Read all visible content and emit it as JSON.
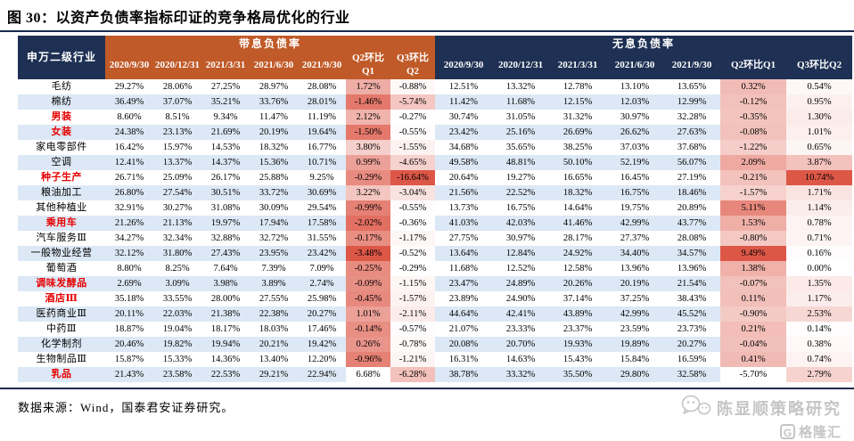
{
  "title": "图 30：以资产负债率指标印证的竞争格局优化的行业",
  "colors": {
    "header_navy": "#1E3053",
    "header_orange": "#C05A28",
    "row_stripe": "#DCE8F5",
    "highlight_name_red": "#E60000",
    "scale_base_red": "#DD5747",
    "rule_line": "#1A2B4D"
  },
  "table": {
    "first_column_header": "申万二级行业",
    "groups": [
      {
        "label": "带息负债率",
        "key": "interest_bearing",
        "scale_direction": "negative_darker",
        "columns": [
          "2020/9/30",
          "2020/12/31",
          "2021/3/31",
          "2021/6/30",
          "2021/9/30",
          "Q2环比Q1",
          "Q3环比Q2"
        ]
      },
      {
        "label": "无息负债率",
        "key": "interest_free",
        "scale_direction": "positive_darker",
        "columns": [
          "2020/9/30",
          "2020/12/31",
          "2021/3/31",
          "2021/6/30",
          "2021/9/30",
          "Q2环比Q1",
          "Q3环比Q2"
        ]
      }
    ],
    "rows": [
      {
        "name": "毛纺",
        "highlight": false,
        "interest_bearing": [
          "29.27%",
          "28.06%",
          "27.25%",
          "28.97%",
          "28.08%",
          "1.72%",
          "-0.88%"
        ],
        "interest_free": [
          "12.51%",
          "13.32%",
          "12.78%",
          "13.10%",
          "13.65%",
          "0.32%",
          "0.54%"
        ]
      },
      {
        "name": "棉纺",
        "highlight": false,
        "interest_bearing": [
          "36.49%",
          "37.07%",
          "35.21%",
          "33.76%",
          "28.01%",
          "-1.46%",
          "-5.74%"
        ],
        "interest_free": [
          "11.42%",
          "11.68%",
          "12.15%",
          "12.03%",
          "12.99%",
          "-0.12%",
          "0.95%"
        ]
      },
      {
        "name": "男装",
        "highlight": true,
        "interest_bearing": [
          "8.60%",
          "8.51%",
          "9.34%",
          "11.47%",
          "11.19%",
          "2.12%",
          "-0.27%"
        ],
        "interest_free": [
          "30.74%",
          "31.05%",
          "31.32%",
          "30.97%",
          "32.28%",
          "-0.35%",
          "1.30%"
        ]
      },
      {
        "name": "女装",
        "highlight": true,
        "interest_bearing": [
          "24.38%",
          "23.13%",
          "21.69%",
          "20.19%",
          "19.64%",
          "-1.50%",
          "-0.55%"
        ],
        "interest_free": [
          "23.42%",
          "25.16%",
          "26.69%",
          "26.62%",
          "27.63%",
          "-0.08%",
          "1.01%"
        ]
      },
      {
        "name": "家电零部件",
        "highlight": false,
        "interest_bearing": [
          "16.42%",
          "15.97%",
          "14.53%",
          "18.32%",
          "16.77%",
          "3.80%",
          "-1.55%"
        ],
        "interest_free": [
          "34.68%",
          "35.65%",
          "38.25%",
          "37.03%",
          "37.68%",
          "-1.22%",
          "0.65%"
        ]
      },
      {
        "name": "空调",
        "highlight": false,
        "interest_bearing": [
          "12.41%",
          "13.37%",
          "14.37%",
          "15.36%",
          "10.71%",
          "0.99%",
          "-4.65%"
        ],
        "interest_free": [
          "49.58%",
          "48.81%",
          "50.10%",
          "52.19%",
          "56.07%",
          "2.09%",
          "3.87%"
        ]
      },
      {
        "name": "种子生产",
        "highlight": true,
        "interest_bearing": [
          "26.71%",
          "25.09%",
          "26.17%",
          "25.88%",
          "9.25%",
          "-0.29%",
          "-16.64%"
        ],
        "interest_free": [
          "20.64%",
          "19.27%",
          "16.65%",
          "16.45%",
          "27.19%",
          "-0.21%",
          "10.74%"
        ]
      },
      {
        "name": "粮油加工",
        "highlight": false,
        "interest_bearing": [
          "26.80%",
          "27.54%",
          "30.51%",
          "33.72%",
          "30.69%",
          "3.22%",
          "-3.04%"
        ],
        "interest_free": [
          "21.56%",
          "22.52%",
          "18.32%",
          "16.75%",
          "18.46%",
          "-1.57%",
          "1.71%"
        ]
      },
      {
        "name": "其他种植业",
        "highlight": false,
        "interest_bearing": [
          "32.91%",
          "30.27%",
          "31.08%",
          "30.09%",
          "29.54%",
          "-0.99%",
          "-0.55%"
        ],
        "interest_free": [
          "13.73%",
          "16.75%",
          "14.64%",
          "19.75%",
          "20.89%",
          "5.11%",
          "1.14%"
        ]
      },
      {
        "name": "乘用车",
        "highlight": true,
        "interest_bearing": [
          "21.26%",
          "21.13%",
          "19.97%",
          "17.94%",
          "17.58%",
          "-2.02%",
          "-0.36%"
        ],
        "interest_free": [
          "41.03%",
          "42.03%",
          "41.46%",
          "42.99%",
          "43.77%",
          "1.53%",
          "0.78%"
        ]
      },
      {
        "name": "汽车服务Ⅲ",
        "highlight": false,
        "interest_bearing": [
          "34.27%",
          "32.34%",
          "32.88%",
          "32.72%",
          "31.55%",
          "-0.17%",
          "-1.17%"
        ],
        "interest_free": [
          "27.75%",
          "30.97%",
          "28.17%",
          "27.37%",
          "28.08%",
          "-0.80%",
          "0.71%"
        ]
      },
      {
        "name": "一般物业经营",
        "highlight": false,
        "interest_bearing": [
          "32.12%",
          "31.80%",
          "27.43%",
          "23.95%",
          "23.42%",
          "-3.48%",
          "-0.52%"
        ],
        "interest_free": [
          "13.64%",
          "12.84%",
          "24.92%",
          "34.40%",
          "34.57%",
          "9.49%",
          "0.16%"
        ]
      },
      {
        "name": "葡萄酒",
        "highlight": false,
        "interest_bearing": [
          "8.80%",
          "8.25%",
          "7.64%",
          "7.39%",
          "7.09%",
          "-0.25%",
          "-0.29%"
        ],
        "interest_free": [
          "11.68%",
          "12.52%",
          "12.58%",
          "13.96%",
          "13.96%",
          "1.38%",
          "0.00%"
        ]
      },
      {
        "name": "调味发酵品",
        "highlight": true,
        "interest_bearing": [
          "2.69%",
          "3.09%",
          "3.98%",
          "3.89%",
          "2.74%",
          "-0.09%",
          "-1.15%"
        ],
        "interest_free": [
          "23.47%",
          "24.89%",
          "20.26%",
          "20.19%",
          "21.54%",
          "-0.07%",
          "1.35%"
        ]
      },
      {
        "name": "酒店Ⅲ",
        "highlight": true,
        "interest_bearing": [
          "35.18%",
          "33.55%",
          "28.00%",
          "27.55%",
          "25.98%",
          "-0.45%",
          "-1.57%"
        ],
        "interest_free": [
          "23.89%",
          "24.90%",
          "37.14%",
          "37.25%",
          "38.43%",
          "0.11%",
          "1.17%"
        ]
      },
      {
        "name": "医药商业Ⅲ",
        "highlight": false,
        "interest_bearing": [
          "20.11%",
          "22.03%",
          "21.38%",
          "22.38%",
          "20.27%",
          "1.01%",
          "-2.11%"
        ],
        "interest_free": [
          "44.64%",
          "42.41%",
          "43.89%",
          "42.99%",
          "45.52%",
          "-0.90%",
          "2.53%"
        ]
      },
      {
        "name": "中药Ⅲ",
        "highlight": false,
        "interest_bearing": [
          "18.87%",
          "19.04%",
          "18.17%",
          "18.03%",
          "17.46%",
          "-0.14%",
          "-0.57%"
        ],
        "interest_free": [
          "21.07%",
          "23.33%",
          "23.37%",
          "23.59%",
          "23.73%",
          "0.21%",
          "0.14%"
        ]
      },
      {
        "name": "化学制剂",
        "highlight": false,
        "interest_bearing": [
          "20.46%",
          "19.82%",
          "19.94%",
          "20.21%",
          "19.42%",
          "0.26%",
          "-0.78%"
        ],
        "interest_free": [
          "20.08%",
          "20.70%",
          "19.93%",
          "19.89%",
          "20.27%",
          "-0.04%",
          "0.38%"
        ]
      },
      {
        "name": "生物制品Ⅲ",
        "highlight": false,
        "interest_bearing": [
          "15.87%",
          "15.33%",
          "14.36%",
          "13.40%",
          "12.20%",
          "-0.96%",
          "-1.21%"
        ],
        "interest_free": [
          "16.31%",
          "14.63%",
          "15.43%",
          "15.84%",
          "16.59%",
          "0.41%",
          "0.74%"
        ]
      },
      {
        "name": "乳品",
        "highlight": true,
        "interest_bearing": [
          "21.43%",
          "23.58%",
          "22.53%",
          "29.21%",
          "22.94%",
          "6.68%",
          "-6.28%"
        ],
        "interest_free": [
          "38.78%",
          "33.32%",
          "35.50%",
          "29.80%",
          "32.58%",
          "-5.70%",
          "2.79%"
        ]
      }
    ]
  },
  "footer": {
    "source": "数据来源：Wind，国泰君安证券研究。"
  },
  "watermarks": {
    "wechat_account": "陈显顺策略研究",
    "brand_initial": "G",
    "brand_name": "格隆汇"
  }
}
